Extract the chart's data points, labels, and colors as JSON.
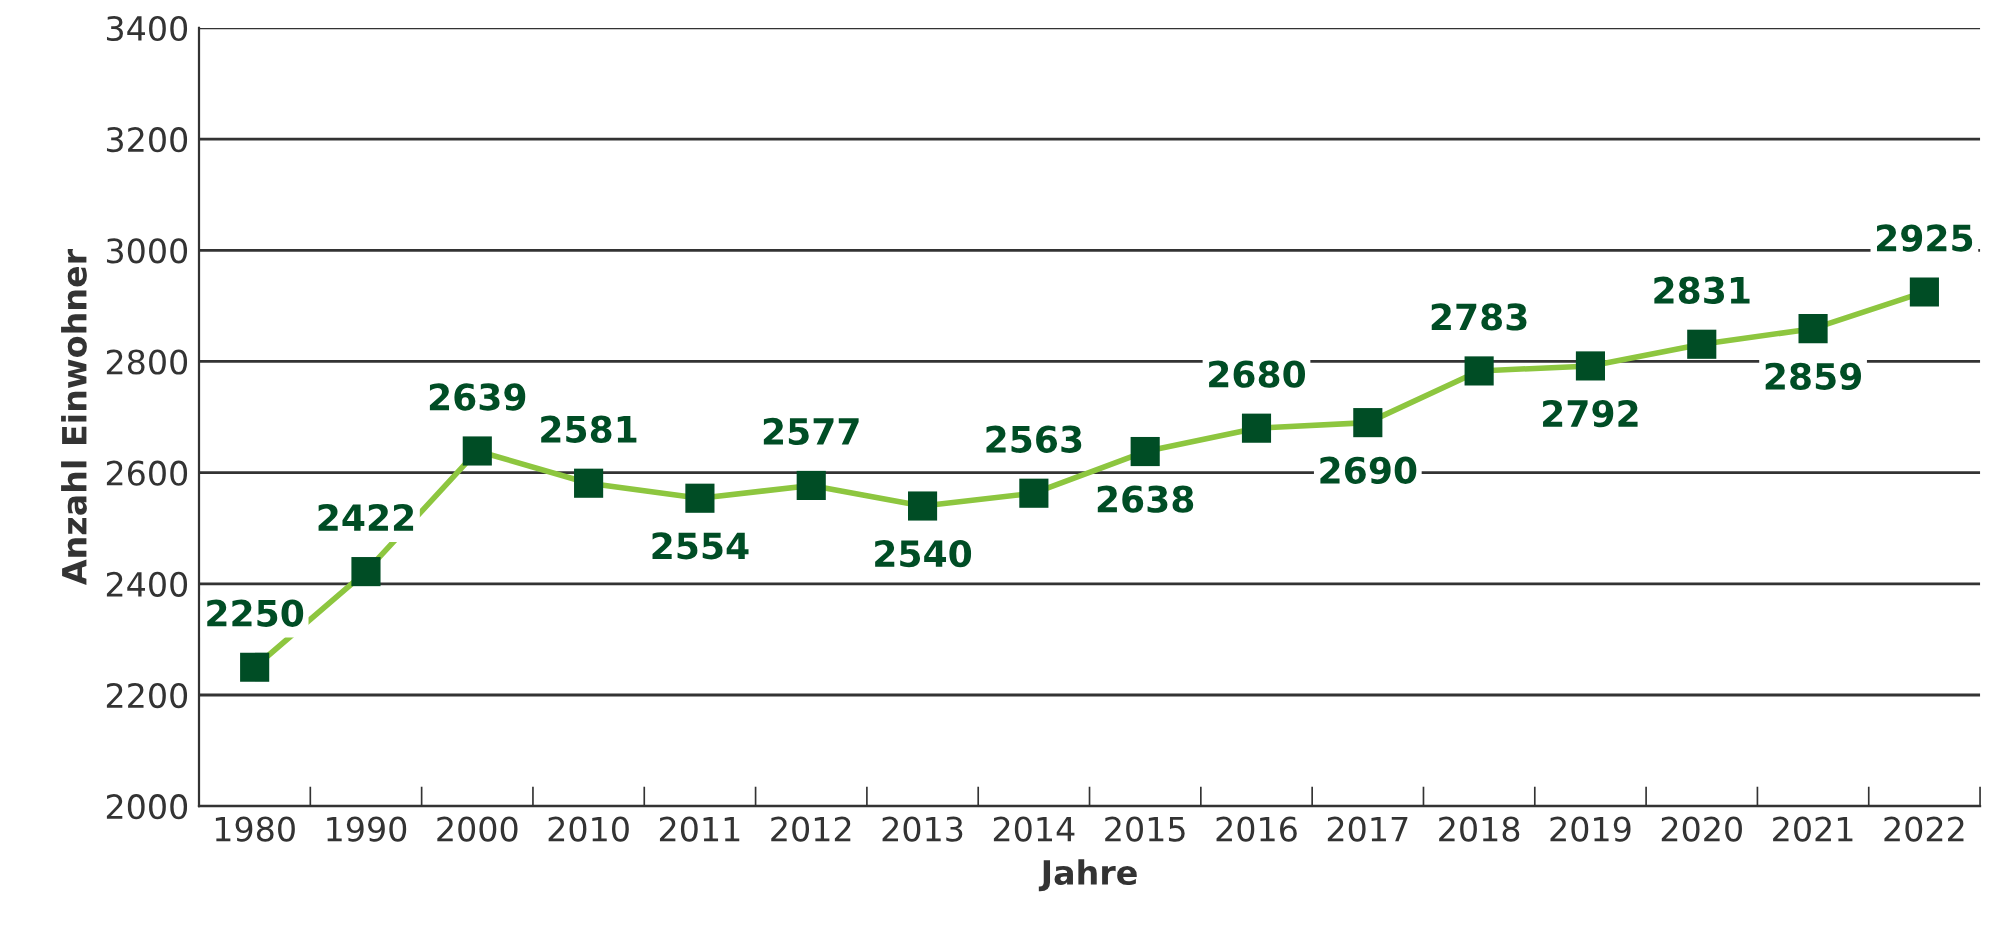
{
  "chart_data": {
    "type": "line",
    "xlabel": "Jahre",
    "ylabel": "Anzahl Einwohner",
    "categories": [
      "1980",
      "1990",
      "2000",
      "2010",
      "2011",
      "2012",
      "2013",
      "2014",
      "2015",
      "2016",
      "2017",
      "2018",
      "2019",
      "2020",
      "2021",
      "2022"
    ],
    "series": [
      {
        "color": "#8dc63f",
        "colors": [
          "#004d25",
          "#004d25",
          "#004d25",
          "#004d25",
          "#004d25",
          "#004d25",
          "#004d25",
          "#004d25",
          "#004d25",
          "#004d25",
          "#004d25",
          "#004d25",
          "#004d25",
          "#004d25",
          "#004d25",
          "#004d25"
        ],
        "values": [
          2250,
          2422,
          2639,
          2581,
          2554,
          2577,
          2540,
          2563,
          2638,
          2680,
          2690,
          2783,
          2792,
          2831,
          2859,
          2925
        ]
      }
    ],
    "ylim": [
      2000,
      3400
    ],
    "yticks": [
      2000,
      2200,
      2400,
      2600,
      2800,
      3000,
      3200,
      3400
    ],
    "grid": "y",
    "marker": "square",
    "line_style": "solid",
    "data_labels": true,
    "legend": false
  }
}
